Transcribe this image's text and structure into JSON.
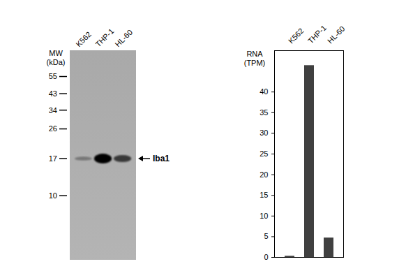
{
  "blot": {
    "lanes": [
      "K562",
      "THP-1",
      "HL-60"
    ],
    "axis_title": [
      "MW",
      "(kDa)"
    ],
    "ylim": [
      4,
      80
    ],
    "log": true,
    "markers": [
      55,
      43,
      34,
      26,
      17,
      10
    ],
    "band_label": "Iba1",
    "band_kda": 17,
    "band_intensity": [
      0.15,
      1,
      0.6
    ]
  },
  "chart_data": {
    "type": "bar",
    "y_label": [
      "RNA",
      "(TPM)"
    ],
    "categories": [
      "K562",
      "THP-1",
      "HL-60"
    ],
    "values": [
      0.3,
      46.4,
      4.7
    ],
    "color": "#404040",
    "ylim": [
      0,
      50
    ],
    "yticks": [
      0,
      5,
      10,
      15,
      20,
      25,
      30,
      35,
      40
    ],
    "grid": false
  }
}
